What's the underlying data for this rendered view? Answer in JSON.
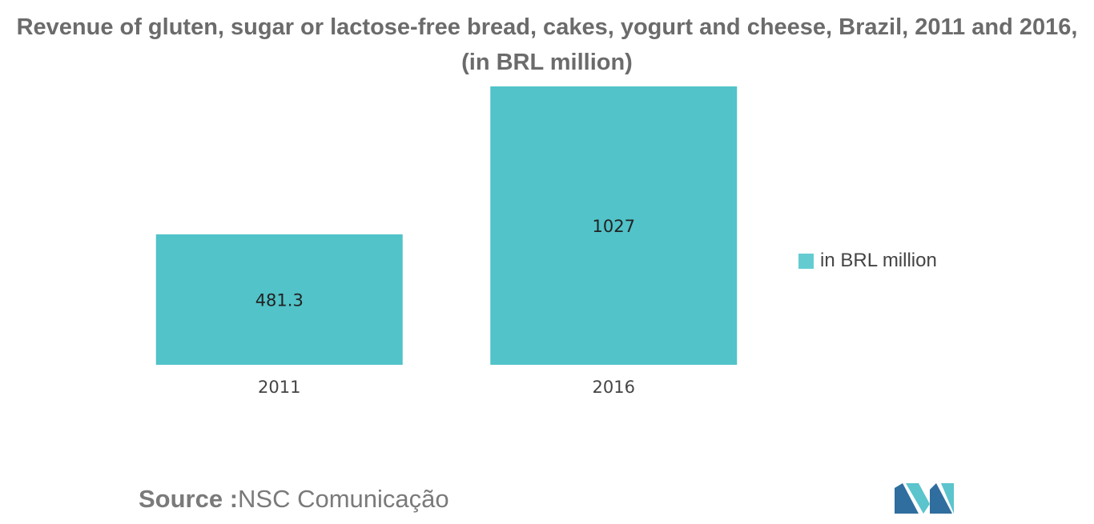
{
  "chart_data": {
    "type": "bar",
    "title": "Revenue of gluten, sugar or lactose-free bread, cakes, yogurt and cheese, Brazil, 2011 and 2016, (in BRL million)",
    "categories": [
      "2011",
      "2016"
    ],
    "series": [
      {
        "name": "in BRL million",
        "values": [
          481.3,
          1027
        ]
      }
    ],
    "value_labels": [
      "481.3",
      "1027"
    ],
    "ylim": [
      0,
      1027
    ],
    "xlabel": "",
    "ylabel": "",
    "grid": false,
    "legend": "right"
  },
  "source": {
    "label": "Source :",
    "text": "NSC Comunicação"
  },
  "colors": {
    "bar": "#51c3c9",
    "legend_swatch": "#64ccd1",
    "title": "#6b6b6b",
    "axis_text": "#444444",
    "logo_dark": "#2f6e9e",
    "logo_light": "#5bc4cc"
  },
  "logo": {
    "icon": "mordor-logo-icon"
  }
}
